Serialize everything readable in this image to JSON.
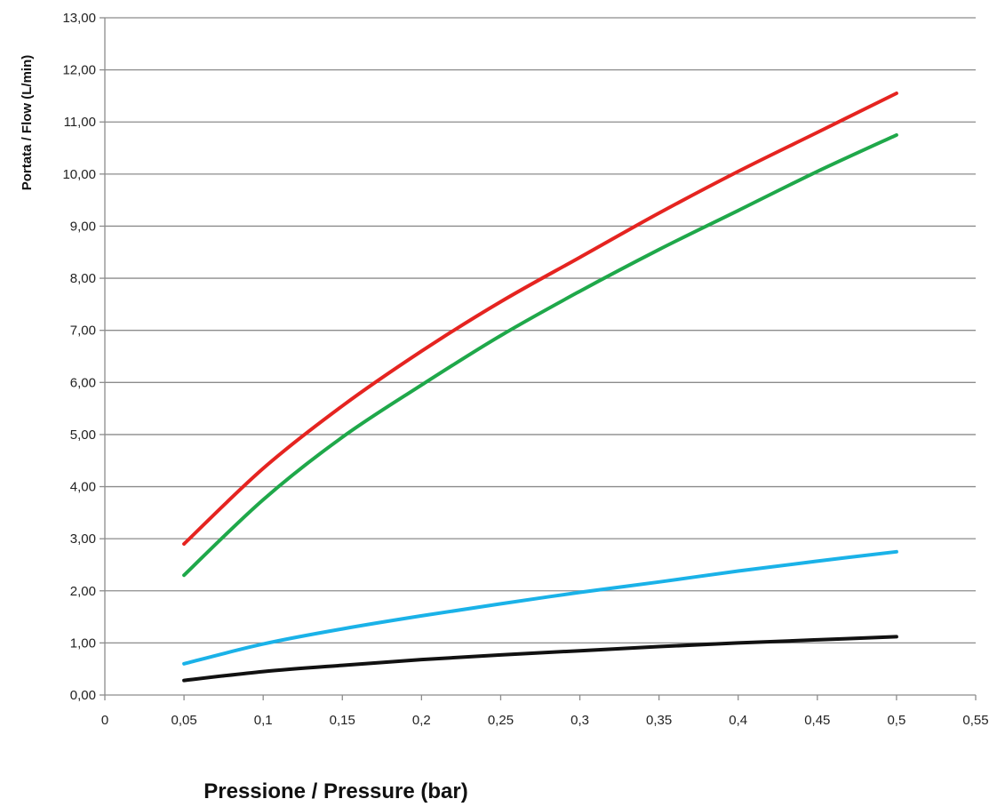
{
  "chart_data": {
    "type": "line",
    "title": "",
    "xlabel": "Pressione / Pressure (bar)",
    "ylabel": "Portata / Flow (L/min)",
    "xlim": [
      0,
      0.55
    ],
    "ylim": [
      0,
      13
    ],
    "x_ticks": [
      0,
      0.05,
      0.1,
      0.15,
      0.2,
      0.25,
      0.3,
      0.35,
      0.4,
      0.45,
      0.5,
      0.55
    ],
    "x_tick_labels": [
      "0",
      "0,05",
      "0,1",
      "0,15",
      "0,2",
      "0,25",
      "0,3",
      "0,35",
      "0,4",
      "0,45",
      "0,5",
      "0,55"
    ],
    "y_ticks": [
      0,
      1,
      2,
      3,
      4,
      5,
      6,
      7,
      8,
      9,
      10,
      11,
      12,
      13
    ],
    "y_tick_labels": [
      "0,00",
      "1,00",
      "2,00",
      "3,00",
      "4,00",
      "5,00",
      "6,00",
      "7,00",
      "8,00",
      "9,00",
      "10,00",
      "11,00",
      "12,00",
      "13,00"
    ],
    "grid": "horizontal",
    "legend": "none",
    "x": [
      0.05,
      0.1,
      0.15,
      0.2,
      0.25,
      0.3,
      0.35,
      0.4,
      0.45,
      0.5
    ],
    "series": [
      {
        "color": "#e52420",
        "values": [
          2.9,
          4.35,
          5.55,
          6.6,
          7.55,
          8.4,
          9.25,
          10.05,
          10.8,
          11.55
        ]
      },
      {
        "color": "#1fa84a",
        "values": [
          2.3,
          3.75,
          4.95,
          5.95,
          6.9,
          7.75,
          8.55,
          9.3,
          10.05,
          10.75
        ]
      },
      {
        "color": "#1ab2e8",
        "values": [
          0.6,
          0.98,
          1.27,
          1.52,
          1.75,
          1.97,
          2.17,
          2.38,
          2.57,
          2.75
        ]
      },
      {
        "color": "#111111",
        "values": [
          0.28,
          0.45,
          0.57,
          0.68,
          0.77,
          0.85,
          0.93,
          1.0,
          1.06,
          1.12
        ]
      }
    ],
    "colors": {
      "grid": "#8c8c8c",
      "axis": "#8c8c8c"
    }
  }
}
